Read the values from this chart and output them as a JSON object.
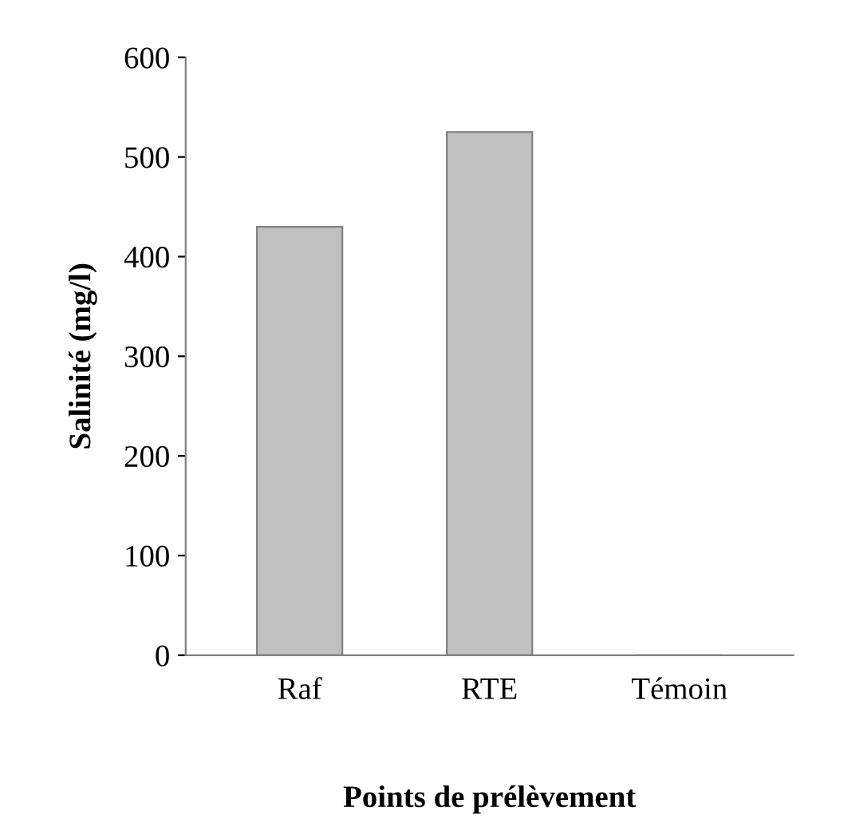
{
  "chart_data": {
    "type": "bar",
    "xlabel": "Points de prélèvement",
    "ylabel": "Salinité (mg/l)",
    "categories": [
      "Raf",
      "RTE",
      "Témoin"
    ],
    "values": [
      430,
      525,
      0
    ],
    "color": "#c0c0c0",
    "ylim": [
      0,
      600
    ],
    "yticks": [
      0,
      100,
      200,
      300,
      400,
      500,
      600
    ],
    "grid": false
  }
}
